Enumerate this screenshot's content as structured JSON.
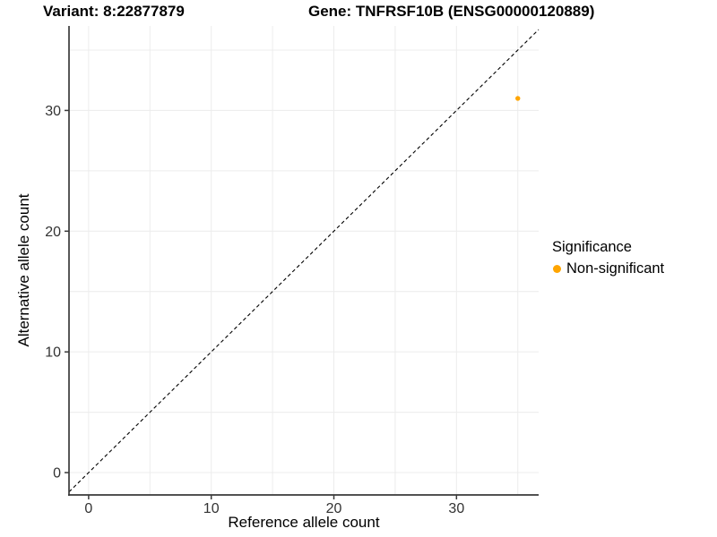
{
  "figure": {
    "titles": {
      "variant": "Variant: 8:22877879",
      "gene": "Gene: TNFRSF10B (ENSG00000120889)"
    }
  },
  "chart_data": {
    "type": "scatter",
    "title_left": "Variant: 8:22877879",
    "title_right": "Gene: TNFRSF10B (ENSG00000120889)",
    "xlabel": "Reference allele count",
    "ylabel": "Alternative allele count",
    "x_ticks": [
      0,
      10,
      20,
      30
    ],
    "y_ticks": [
      0,
      10,
      20,
      30
    ],
    "xlim": [
      -1.6,
      36.7
    ],
    "ylim": [
      -1.85,
      37.0
    ],
    "grid": {
      "show": true,
      "interval": 5,
      "min": 0,
      "max": 35,
      "color": "#ececec"
    },
    "reference_line": {
      "kind": "identity",
      "slope": 1,
      "intercept": 0,
      "style": "dashed",
      "color": "#000000"
    },
    "series": [
      {
        "name": "Non-significant",
        "color": "#FFA500",
        "point_radius": 2.7,
        "points": [
          {
            "x": 35,
            "y": 31
          }
        ]
      }
    ],
    "legend": {
      "title": "Significance",
      "position": "right",
      "items": [
        {
          "label": "Non-significant",
          "color": "#FFA500",
          "marker": "dot"
        }
      ]
    },
    "axis_color": "#3a3a3a",
    "tick_label_color": "#333333"
  }
}
